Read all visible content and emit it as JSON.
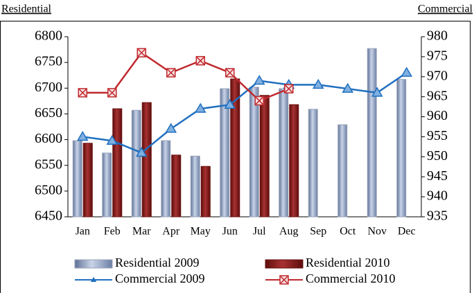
{
  "chart_data": {
    "type": "bar",
    "y_label": "Residential",
    "y2_label": "Commercial",
    "categories": [
      "Jan",
      "Feb",
      "Mar",
      "Apr",
      "May",
      "Jun",
      "Jul",
      "Aug",
      "Sep",
      "Oct",
      "Nov",
      "Dec"
    ],
    "series": [
      {
        "name": "Residential 2009",
        "type": "bar",
        "color": "#8ea2c4",
        "values": [
          6598,
          6574,
          6657,
          6598,
          6568,
          6699,
          6702,
          6699,
          6659,
          6629,
          6777,
          6717
        ]
      },
      {
        "name": "Residential 2010",
        "type": "bar",
        "color": "#8b1a1a",
        "values": [
          6593,
          6660,
          6672,
          6570,
          6548,
          6718,
          6686,
          6668,
          null,
          null,
          null,
          null
        ]
      },
      {
        "name": "Commercial 2009",
        "type": "line",
        "axis": "y2",
        "color": "#1f6fc0",
        "values": [
          955,
          954,
          951,
          957,
          962,
          963,
          969,
          968,
          968,
          967,
          966,
          971
        ]
      },
      {
        "name": "Commercial 2010",
        "type": "line",
        "axis": "y2",
        "color": "#c0282d",
        "values": [
          966,
          966,
          976,
          971,
          974,
          971,
          964,
          967,
          null,
          null,
          null,
          null
        ]
      }
    ],
    "ylim": [
      6450,
      6800
    ],
    "yticks": [
      6450,
      6500,
      6550,
      6600,
      6650,
      6700,
      6750,
      6800
    ],
    "y2lim": [
      935,
      980
    ],
    "y2ticks": [
      935,
      940,
      945,
      950,
      955,
      960,
      965,
      970,
      975,
      980
    ],
    "grid": false
  }
}
